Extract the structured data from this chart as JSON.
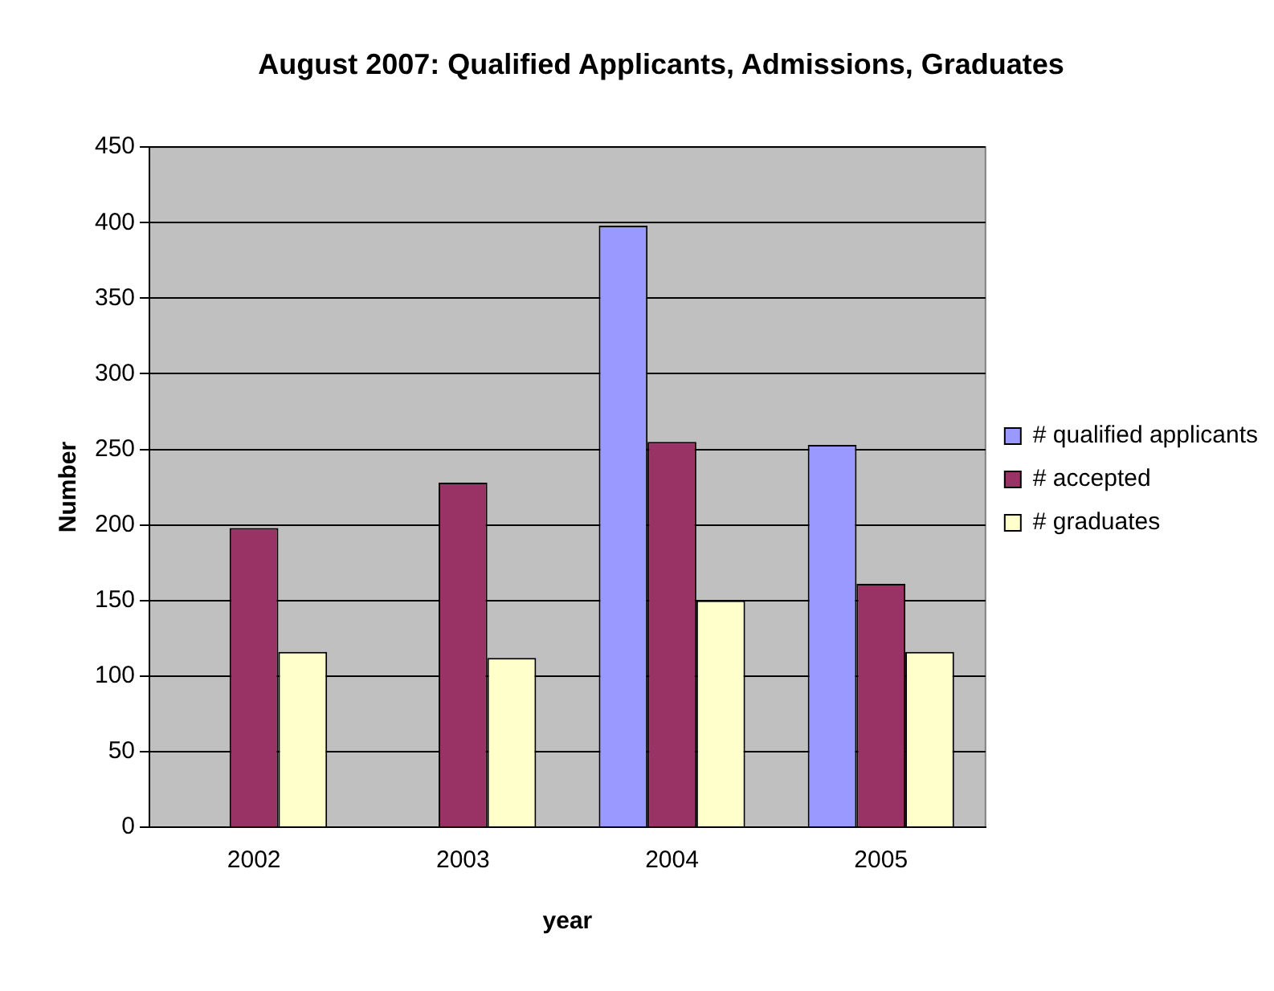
{
  "chart_data": {
    "type": "bar",
    "title": "August 2007: Qualified Applicants, Admissions, Graduates",
    "xlabel": "year",
    "ylabel": "Number",
    "categories": [
      "2002",
      "2003",
      "2004",
      "2005"
    ],
    "series": [
      {
        "name": "# qualified applicants",
        "color": "#9999ff",
        "values": [
          null,
          null,
          398,
          253
        ]
      },
      {
        "name": "# accepted",
        "color": "#993366",
        "values": [
          198,
          228,
          255,
          161
        ]
      },
      {
        "name": "# graduates",
        "color": "#ffffcc",
        "values": [
          116,
          112,
          150,
          116
        ]
      }
    ],
    "ylim": [
      0,
      450
    ],
    "yticks": [
      0,
      50,
      100,
      150,
      200,
      250,
      300,
      350,
      400,
      450
    ],
    "grid": "y",
    "legend": "right"
  }
}
